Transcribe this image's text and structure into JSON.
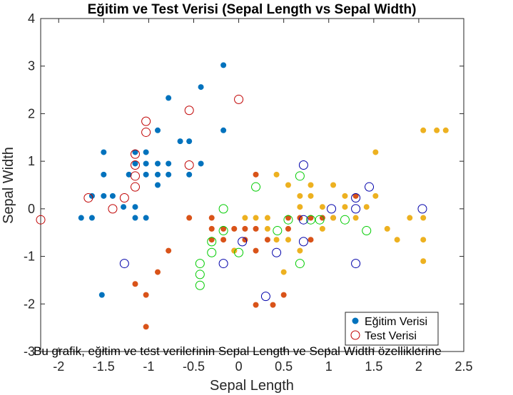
{
  "chart_data": {
    "type": "scatter",
    "title": "Eğitim ve Test Verisi (Sepal Length vs Sepal Width)",
    "xlabel": "Sepal Length",
    "ylabel": "Sepal Width",
    "xlim": [
      -2.2,
      2.5
    ],
    "ylim": [
      -3,
      4
    ],
    "xticks": [
      "-2",
      "-1.5",
      "-1",
      "-0.5",
      "0",
      "0.5",
      "1",
      "1.5",
      "2",
      "2.5"
    ],
    "xtick_values": [
      -2,
      -1.5,
      -1,
      -0.5,
      0,
      0.5,
      1,
      1.5,
      2,
      2.5
    ],
    "yticks": [
      "-3",
      "-2",
      "-1",
      "0",
      "1",
      "2",
      "3",
      "4"
    ],
    "ytick_values": [
      -3,
      -2,
      -1,
      0,
      1,
      2,
      3,
      4
    ],
    "grid": false,
    "legend_position": "bottom-right",
    "caption": "Bu grafik, eğitim ve test verilerinin Sepal Length ve Sepal Width özelliklerine",
    "colors": {
      "train_blue": "#0072BD",
      "train_orange": "#D95319",
      "train_yellow": "#EDB120",
      "test_red": "#C00000",
      "test_green": "#00CC00",
      "test_blue": "#0000AA"
    },
    "legend": [
      {
        "label": "Eğitim Verisi",
        "marker": "filled",
        "color": "#0072BD"
      },
      {
        "label": "Test Verisi",
        "marker": "open",
        "color": "#C00000"
      }
    ],
    "series": [
      {
        "role": "train",
        "marker": "filled",
        "color": "#0072BD",
        "points": [
          [
            -1.75,
            -0.19
          ],
          [
            -1.63,
            -0.19
          ],
          [
            -1.63,
            0.27
          ],
          [
            -1.5,
            1.19
          ],
          [
            -1.5,
            0.72
          ],
          [
            -1.5,
            0.27
          ],
          [
            -1.4,
            0.27
          ],
          [
            -1.28,
            0.04
          ],
          [
            -1.22,
            0.72
          ],
          [
            -1.15,
            0.04
          ],
          [
            -1.15,
            -0.19
          ],
          [
            -1.15,
            0.95
          ],
          [
            -1.15,
            1.19
          ],
          [
            -1.03,
            -0.19
          ],
          [
            -1.03,
            0.72
          ],
          [
            -1.03,
            0.95
          ],
          [
            -1.03,
            1.19
          ],
          [
            -0.9,
            0.72
          ],
          [
            -0.9,
            0.5
          ],
          [
            -0.9,
            0.95
          ],
          [
            -0.9,
            1.65
          ],
          [
            -0.78,
            0.72
          ],
          [
            -0.78,
            0.95
          ],
          [
            -0.78,
            2.33
          ],
          [
            -0.65,
            1.42
          ],
          [
            -0.55,
            0.72
          ],
          [
            -0.55,
            1.42
          ],
          [
            -0.42,
            0.95
          ],
          [
            -0.42,
            2.56
          ],
          [
            -0.17,
            1.65
          ],
          [
            -0.17,
            3.02
          ],
          [
            -1.52,
            -1.81
          ]
        ]
      },
      {
        "role": "train",
        "marker": "filled",
        "color": "#D95319",
        "points": [
          [
            -1.03,
            -2.48
          ],
          [
            -1.03,
            -1.81
          ],
          [
            -1.15,
            -1.58
          ],
          [
            -0.9,
            -1.33
          ],
          [
            -0.78,
            -0.88
          ],
          [
            -0.55,
            -0.19
          ],
          [
            -0.3,
            -0.19
          ],
          [
            -0.3,
            -0.42
          ],
          [
            -0.3,
            -0.65
          ],
          [
            -0.17,
            -0.42
          ],
          [
            -0.17,
            -0.65
          ],
          [
            -0.05,
            -0.42
          ],
          [
            -0.05,
            -0.88
          ],
          [
            0.07,
            -0.42
          ],
          [
            0.07,
            -0.65
          ],
          [
            0.19,
            -0.42
          ],
          [
            0.19,
            -0.88
          ],
          [
            0.19,
            0.72
          ],
          [
            0.32,
            -0.65
          ],
          [
            0.38,
            -2.02
          ],
          [
            0.5,
            -1.81
          ],
          [
            0.19,
            -2.02
          ],
          [
            0.55,
            -0.19
          ],
          [
            0.55,
            -0.42
          ],
          [
            0.68,
            -0.19
          ],
          [
            0.8,
            -0.19
          ],
          [
            0.93,
            -0.19
          ],
          [
            1.05,
            -0.19
          ],
          [
            1.3,
            0.27
          ],
          [
            0.8,
            -0.65
          ]
        ]
      },
      {
        "role": "train",
        "marker": "filled",
        "color": "#EDB120",
        "points": [
          [
            -0.05,
            -0.88
          ],
          [
            0.07,
            -0.19
          ],
          [
            0.19,
            -0.19
          ],
          [
            0.32,
            -0.19
          ],
          [
            0.32,
            -0.42
          ],
          [
            0.42,
            -0.65
          ],
          [
            0.42,
            0.72
          ],
          [
            0.5,
            -1.33
          ],
          [
            0.55,
            0.5
          ],
          [
            0.55,
            -0.65
          ],
          [
            0.68,
            0.27
          ],
          [
            0.68,
            0.04
          ],
          [
            0.68,
            -0.88
          ],
          [
            0.8,
            0.27
          ],
          [
            0.8,
            0.5
          ],
          [
            0.93,
            -0.42
          ],
          [
            0.93,
            0.04
          ],
          [
            1.05,
            0.5
          ],
          [
            1.05,
            -0.19
          ],
          [
            1.18,
            0.04
          ],
          [
            1.18,
            0.27
          ],
          [
            1.3,
            -0.19
          ],
          [
            1.42,
            0.04
          ],
          [
            1.52,
            0.27
          ],
          [
            1.52,
            1.19
          ],
          [
            1.65,
            -0.42
          ],
          [
            1.76,
            -0.65
          ],
          [
            1.9,
            -0.19
          ],
          [
            2.05,
            -0.19
          ],
          [
            2.05,
            -0.65
          ],
          [
            2.05,
            -1.1
          ],
          [
            2.05,
            1.65
          ],
          [
            2.3,
            1.65
          ],
          [
            2.2,
            1.65
          ]
        ]
      },
      {
        "role": "test",
        "marker": "open",
        "color": "#C00000",
        "points": [
          [
            -2.2,
            -0.23
          ],
          [
            -1.67,
            0.23
          ],
          [
            -1.4,
            0.0
          ],
          [
            -1.27,
            0.23
          ],
          [
            -1.15,
            1.15
          ],
          [
            -1.15,
            0.92
          ],
          [
            -1.15,
            0.69
          ],
          [
            -1.15,
            0.46
          ],
          [
            -1.03,
            1.84
          ],
          [
            -1.03,
            1.61
          ],
          [
            -0.55,
            2.07
          ],
          [
            -0.55,
            0.92
          ],
          [
            0.0,
            2.3
          ]
        ]
      },
      {
        "role": "test",
        "marker": "open",
        "color": "#00CC00",
        "points": [
          [
            -0.43,
            -1.15
          ],
          [
            -0.43,
            -1.38
          ],
          [
            -0.43,
            -1.61
          ],
          [
            -0.3,
            -0.69
          ],
          [
            -0.3,
            -0.92
          ],
          [
            -0.17,
            -0.46
          ],
          [
            -0.17,
            0.0
          ],
          [
            0.0,
            -0.92
          ],
          [
            0.19,
            0.46
          ],
          [
            0.43,
            -0.46
          ],
          [
            0.55,
            -0.23
          ],
          [
            0.68,
            -1.15
          ],
          [
            0.68,
            0.69
          ],
          [
            0.8,
            -0.23
          ],
          [
            1.18,
            -0.23
          ],
          [
            1.42,
            -0.46
          ],
          [
            0.9,
            -0.23
          ]
        ]
      },
      {
        "role": "test",
        "marker": "open",
        "color": "#0000AA",
        "points": [
          [
            -1.27,
            -1.15
          ],
          [
            -0.17,
            -1.15
          ],
          [
            0.04,
            -0.69
          ],
          [
            0.3,
            -1.84
          ],
          [
            0.42,
            -0.92
          ],
          [
            0.72,
            -0.23
          ],
          [
            0.72,
            -0.69
          ],
          [
            0.72,
            0.92
          ],
          [
            1.03,
            0.0
          ],
          [
            1.3,
            0.0
          ],
          [
            1.3,
            0.23
          ],
          [
            1.3,
            -1.15
          ],
          [
            1.45,
            0.46
          ],
          [
            2.04,
            0.0
          ]
        ]
      }
    ]
  }
}
